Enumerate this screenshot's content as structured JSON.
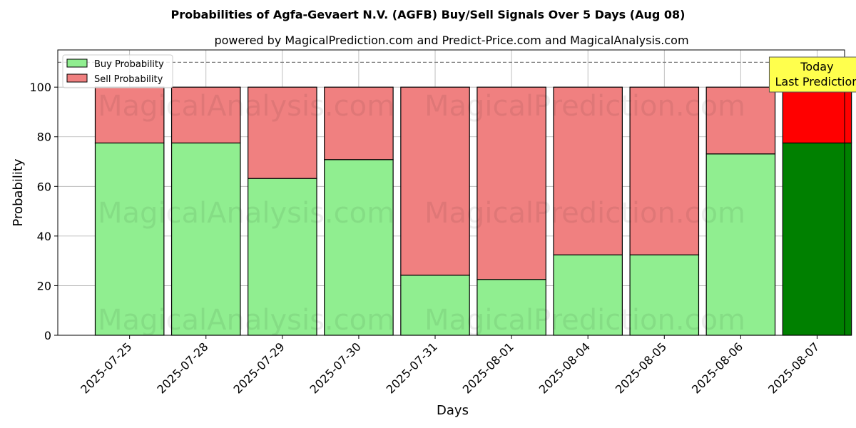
{
  "chart_data": {
    "type": "bar",
    "title": "Probabilities of Agfa-Gevaert N.V. (AGFB) Buy/Sell Signals Over 5 Days (Aug 08)",
    "subtitle": "powered by MagicalPrediction.com and Predict-Price.com and MagicalAnalysis.com",
    "xlabel": "Days",
    "ylabel": "Probability",
    "ylim": [
      0,
      115
    ],
    "yticks": [
      0,
      20,
      40,
      60,
      80,
      100
    ],
    "grid": true,
    "stacked": true,
    "legend_position": "top-left",
    "reference_line": 110,
    "categories": [
      "2025-07-25",
      "2025-07-28",
      "2025-07-29",
      "2025-07-30",
      "2025-07-31",
      "2025-08-01",
      "2025-08-04",
      "2025-08-05",
      "2025-08-06",
      "2025-08-07"
    ],
    "series": [
      {
        "name": "Buy Probability",
        "color": "#90ee90",
        "values": [
          77.5,
          77.5,
          63.2,
          70.8,
          24.2,
          22.5,
          32.4,
          32.4,
          73.1,
          77.5
        ]
      },
      {
        "name": "Sell Probability",
        "color": "#f08080",
        "values": [
          22.5,
          22.5,
          36.8,
          29.2,
          75.8,
          77.5,
          67.6,
          67.6,
          26.9,
          22.5
        ]
      }
    ],
    "highlight": {
      "index": 9,
      "buy_color": "#008000",
      "sell_color": "#ff0000"
    },
    "annotation": {
      "lines": [
        "Today",
        "Last Prediction"
      ],
      "background": "#ffff4d"
    },
    "watermarks": [
      "MagicalAnalysis.com",
      "MagicalPrediction.com"
    ]
  }
}
